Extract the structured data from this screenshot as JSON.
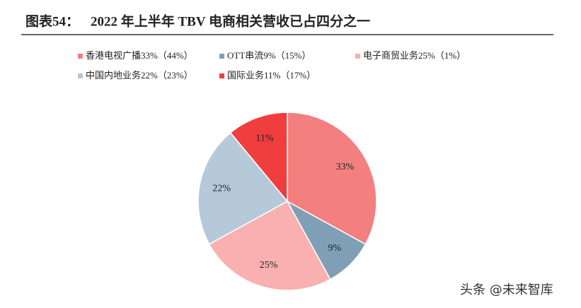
{
  "chart_data": {
    "type": "pie",
    "title_label": "图表54：",
    "title": "2022 年上半年 TBV 电商相关营收已占四分之一",
    "categories": [
      "香港电视广播33%（44%）",
      "OTT串流9%（15%）",
      "电子商贸业务25%（1%）",
      "中国内地业务22%（23%）",
      "国际业务11%（17%）"
    ],
    "values": [
      33,
      9,
      25,
      22,
      11
    ],
    "value_labels": [
      "33%",
      "9%",
      "25%",
      "22%",
      "11%"
    ],
    "colors": [
      "#f47f7f",
      "#7f9fb6",
      "#f8b0b0",
      "#b5c9d9",
      "#f03d3d"
    ],
    "watermark": "头条 @未来智库"
  }
}
